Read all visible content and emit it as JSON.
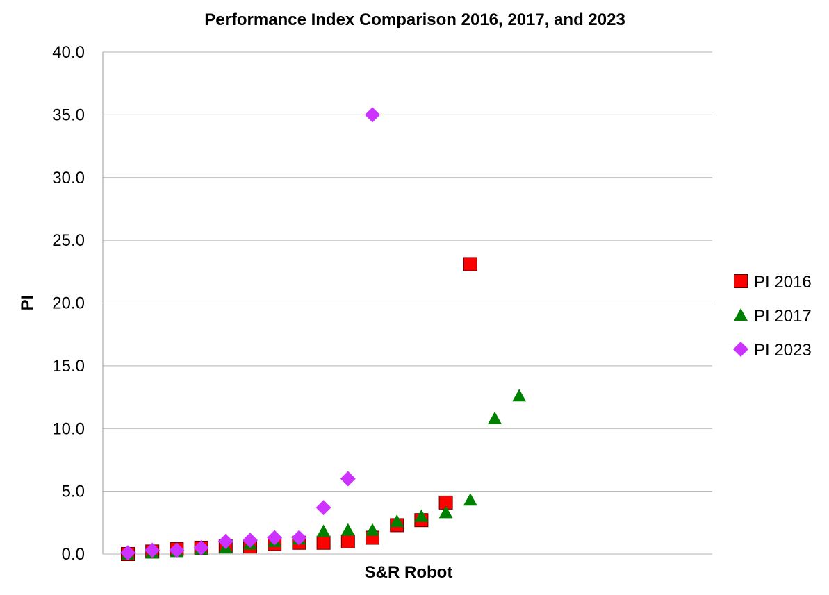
{
  "chart_data": {
    "type": "scatter",
    "title": "Performance Index Comparison 2016, 2017, and 2023",
    "xlabel": "S&R Robot",
    "ylabel": "PI",
    "ylim": [
      0,
      40
    ],
    "yticks": [
      "0.0",
      "5.0",
      "10.0",
      "15.0",
      "20.0",
      "25.0",
      "30.0",
      "35.0",
      "40.0"
    ],
    "grid": true,
    "legend_position": "right",
    "series": [
      {
        "name": "PI 2016",
        "marker": "square",
        "color": "#ff0000",
        "x": [
          1,
          2,
          3,
          4,
          5,
          6,
          7,
          8,
          9,
          10,
          11,
          12,
          13,
          14,
          15
        ],
        "y": [
          0.0,
          0.2,
          0.4,
          0.5,
          0.6,
          0.6,
          0.8,
          0.9,
          0.9,
          1.0,
          1.3,
          2.3,
          2.7,
          4.1,
          23.1
        ]
      },
      {
        "name": "PI 2017",
        "marker": "triangle",
        "color": "#008000",
        "x": [
          1,
          2,
          3,
          4,
          5,
          6,
          7,
          8,
          9,
          10,
          11,
          12,
          13,
          14,
          15,
          16,
          17
        ],
        "y": [
          0.0,
          0.1,
          0.2,
          0.4,
          0.5,
          0.8,
          1.0,
          1.2,
          1.8,
          1.9,
          1.9,
          2.6,
          3.0,
          3.3,
          4.3,
          10.8,
          12.6
        ]
      },
      {
        "name": "PI 2023",
        "marker": "diamond",
        "color": "#cc33ff",
        "x": [
          1,
          2,
          3,
          4,
          5,
          6,
          7,
          8,
          9,
          10,
          11
        ],
        "y": [
          0.1,
          0.3,
          0.3,
          0.5,
          1.0,
          1.1,
          1.3,
          1.3,
          3.7,
          6.0,
          35.0
        ]
      }
    ]
  }
}
